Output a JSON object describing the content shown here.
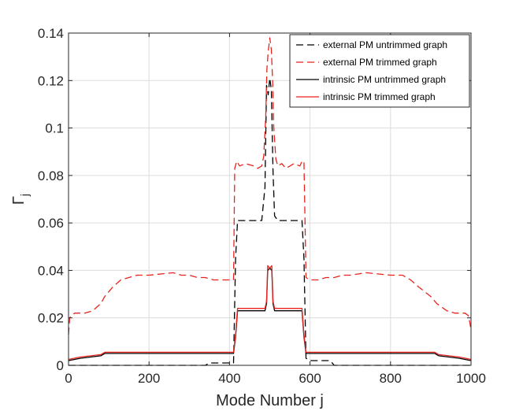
{
  "chart_data": {
    "type": "line",
    "xlabel": "Mode Number j",
    "ylabel": "Γ",
    "ylabel_subscript": "j",
    "xlim": [
      0,
      1000
    ],
    "ylim": [
      0,
      0.14
    ],
    "x_ticks": [
      0,
      200,
      400,
      600,
      800,
      1000
    ],
    "y_ticks": [
      0,
      0.02,
      0.04,
      0.06,
      0.08,
      0.1,
      0.12,
      0.14
    ],
    "x_tick_labels": [
      "0",
      "200",
      "400",
      "600",
      "800",
      "1000"
    ],
    "y_tick_labels": [
      "0",
      "0.02",
      "0.04",
      "0.06",
      "0.08",
      "0.1",
      "0.12",
      "0.14"
    ],
    "grid": true,
    "legend_position": "top-right",
    "series": [
      {
        "name": "external PM untrimmed graph",
        "color": "#000000",
        "dash": "dashed",
        "x": [
          0,
          300,
          340,
          350,
          410,
          415,
          420,
          470,
          480,
          488,
          492,
          496,
          500,
          504,
          508,
          512,
          520,
          580,
          585,
          590,
          600,
          650,
          660,
          1000
        ],
        "y": [
          0,
          0,
          0,
          0.001,
          0.001,
          0.045,
          0.061,
          0.061,
          0.061,
          0.075,
          0.118,
          0.114,
          0.121,
          0.116,
          0.082,
          0.063,
          0.061,
          0.061,
          0.045,
          0.003,
          0.002,
          0.002,
          0,
          0
        ]
      },
      {
        "name": "external PM trimmed graph",
        "color": "#e8231e",
        "dash": "dashed",
        "x": [
          0,
          3,
          8,
          15,
          35,
          40,
          60,
          80,
          90,
          110,
          130,
          150,
          170,
          200,
          260,
          280,
          300,
          320,
          340,
          360,
          380,
          410,
          413,
          418,
          425,
          440,
          460,
          470,
          480,
          485,
          490,
          493,
          496,
          500,
          504,
          507,
          510,
          515,
          520,
          530,
          540,
          560,
          575,
          580,
          585,
          590,
          600,
          620,
          640,
          660,
          680,
          700,
          740,
          800,
          830,
          850,
          870,
          900,
          915,
          940,
          960,
          985,
          993,
          997,
          1000
        ],
        "y": [
          0.013,
          0.02,
          0.021,
          0.022,
          0.022,
          0.022,
          0.023,
          0.026,
          0.029,
          0.033,
          0.036,
          0.037,
          0.038,
          0.038,
          0.039,
          0.038,
          0.038,
          0.037,
          0.037,
          0.036,
          0.036,
          0.036,
          0.083,
          0.086,
          0.084,
          0.085,
          0.084,
          0.083,
          0.084,
          0.088,
          0.105,
          0.125,
          0.132,
          0.138,
          0.133,
          0.12,
          0.1,
          0.087,
          0.084,
          0.085,
          0.083,
          0.085,
          0.084,
          0.086,
          0.086,
          0.037,
          0.036,
          0.036,
          0.037,
          0.037,
          0.038,
          0.038,
          0.039,
          0.038,
          0.038,
          0.036,
          0.033,
          0.029,
          0.026,
          0.023,
          0.022,
          0.022,
          0.021,
          0.018,
          0.015
        ]
      },
      {
        "name": "intrinsic PM untrimmed graph",
        "color": "#000000",
        "dash": "solid",
        "x": [
          0,
          30,
          80,
          90,
          410,
          415,
          420,
          488,
          492,
          495,
          500,
          505,
          508,
          512,
          580,
          585,
          590,
          910,
          920,
          970,
          1000
        ],
        "y": [
          0.002,
          0.003,
          0.004,
          0.005,
          0.005,
          0.012,
          0.023,
          0.023,
          0.026,
          0.04,
          0.041,
          0.04,
          0.026,
          0.023,
          0.023,
          0.012,
          0.005,
          0.005,
          0.004,
          0.003,
          0.002
        ]
      },
      {
        "name": "intrinsic PM trimmed graph",
        "color": "#e8231e",
        "dash": "solid",
        "x": [
          0,
          30,
          80,
          90,
          410,
          415,
          420,
          488,
          492,
          495,
          500,
          505,
          508,
          512,
          580,
          585,
          590,
          910,
          920,
          970,
          1000
        ],
        "y": [
          0.0025,
          0.0035,
          0.0045,
          0.0055,
          0.0055,
          0.013,
          0.024,
          0.024,
          0.027,
          0.042,
          0.041,
          0.042,
          0.027,
          0.024,
          0.024,
          0.013,
          0.0055,
          0.0055,
          0.0045,
          0.0035,
          0.0025
        ]
      }
    ]
  }
}
